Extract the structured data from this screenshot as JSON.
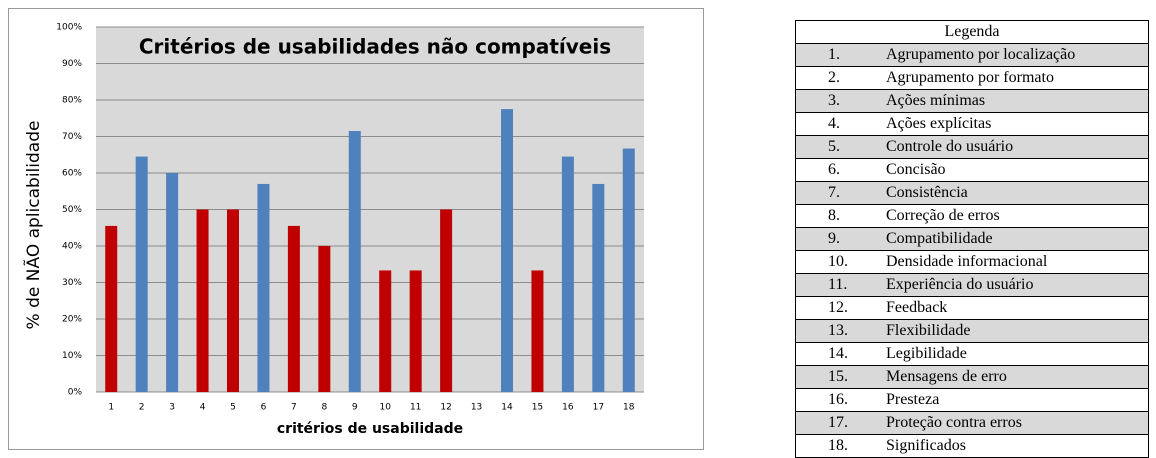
{
  "chart_data": {
    "type": "bar",
    "title": "Critérios de usabilidades não compatíveis",
    "x_label": "critérios de usabilidade",
    "y_label": "% de NÃO aplicabilidade",
    "categories": [
      "1",
      "2",
      "3",
      "4",
      "5",
      "6",
      "7",
      "8",
      "9",
      "10",
      "11",
      "12",
      "13",
      "14",
      "15",
      "16",
      "17",
      "18"
    ],
    "values": [
      45.5,
      64.5,
      60,
      50,
      50,
      57,
      45.5,
      40,
      71.5,
      33.3,
      33.3,
      50,
      0,
      77.5,
      33.3,
      64.5,
      57,
      66.7
    ],
    "colors": [
      "#c00000",
      "#4f81bd",
      "#4f81bd",
      "#c00000",
      "#c00000",
      "#4f81bd",
      "#c00000",
      "#c00000",
      "#4f81bd",
      "#c00000",
      "#c00000",
      "#c00000",
      null,
      "#4f81bd",
      "#c00000",
      "#4f81bd",
      "#4f81bd",
      "#4f81bd"
    ],
    "ylim": [
      0,
      100
    ],
    "yticks": [
      {
        "value": 0,
        "label": "0%"
      },
      {
        "value": 10,
        "label": "10%"
      },
      {
        "value": 20,
        "label": "20%"
      },
      {
        "value": 30,
        "label": "30%"
      },
      {
        "value": 40,
        "label": "40%"
      },
      {
        "value": 50,
        "label": "50%"
      },
      {
        "value": 60,
        "label": "60%"
      },
      {
        "value": 70,
        "label": "70%"
      },
      {
        "value": 80,
        "label": "80%"
      },
      {
        "value": 90,
        "label": "90%"
      },
      {
        "value": 100,
        "label": "100%"
      }
    ],
    "grid": true
  },
  "table": {
    "title": "Legenda",
    "rows": [
      [
        "1.",
        "Agrupamento por localização"
      ],
      [
        "2.",
        "Agrupamento por formato"
      ],
      [
        "3.",
        "Ações mínimas"
      ],
      [
        "4.",
        "Ações explícitas"
      ],
      [
        "5.",
        "Controle do usuário"
      ],
      [
        "6.",
        "Concisão"
      ],
      [
        "7.",
        "Consistência"
      ],
      [
        "8.",
        "Correção de erros"
      ],
      [
        "9.",
        "Compatibilidade"
      ],
      [
        "10.",
        "Densidade informacional"
      ],
      [
        "11.",
        "Experiência do usuário"
      ],
      [
        "12.",
        "Feedback"
      ],
      [
        "13.",
        "Flexibilidade"
      ],
      [
        "14.",
        "Legibilidade"
      ],
      [
        "15.",
        "Mensagens de erro"
      ],
      [
        "16.",
        "Presteza"
      ],
      [
        "17.",
        "Proteção contra erros"
      ],
      [
        "18.",
        "Significados"
      ]
    ]
  }
}
